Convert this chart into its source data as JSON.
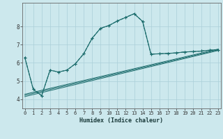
{
  "xlabel": "Humidex (Indice chaleur)",
  "bg_color": "#cce8ed",
  "grid_color": "#aacfd8",
  "line_color": "#1a6b6b",
  "x_ticks": [
    0,
    1,
    2,
    3,
    4,
    5,
    6,
    7,
    8,
    9,
    10,
    11,
    12,
    13,
    14,
    15,
    16,
    17,
    18,
    19,
    20,
    21,
    22,
    23
  ],
  "y_ticks": [
    4,
    5,
    6,
    7,
    8
  ],
  "xlim": [
    -0.3,
    23.3
  ],
  "ylim": [
    3.5,
    9.3
  ],
  "curve_x": [
    0,
    1,
    2,
    3,
    4,
    5,
    6,
    7,
    8,
    9,
    10,
    11,
    12,
    13,
    14,
    15,
    16,
    17,
    18,
    19,
    20,
    21,
    22,
    23
  ],
  "curve_y": [
    6.3,
    4.55,
    4.2,
    5.6,
    5.5,
    5.6,
    5.95,
    6.5,
    7.35,
    7.9,
    8.05,
    8.3,
    8.5,
    8.7,
    8.28,
    6.48,
    6.5,
    6.52,
    6.55,
    6.6,
    6.62,
    6.65,
    6.7,
    6.72
  ],
  "line1_y": [
    4.15,
    6.68
  ],
  "line2_y": [
    4.22,
    6.72
  ],
  "line3_y": [
    4.28,
    6.76
  ]
}
